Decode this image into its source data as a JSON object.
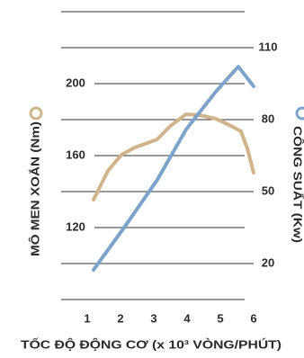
{
  "chart_data": {
    "type": "line",
    "x_label": "TỐC ĐỘ ĐỘNG CƠ (x 10³ VÒNG/PHÚT)",
    "y_label": "MÔ MEN XOẮN (Nm)",
    "y2_label": "CÔNG SUẤT (Kw)",
    "xlim": [
      0.2,
      6
    ],
    "xticks": [
      1,
      2,
      3,
      4,
      5,
      6
    ],
    "ylim": [
      80,
      240
    ],
    "yticks": [
      120,
      160,
      200
    ],
    "y2lim": [
      5,
      125
    ],
    "y2ticks": [
      20,
      50,
      80,
      110
    ],
    "series": [
      {
        "color": "#d2b48c",
        "x": [
          1.19,
          1.62,
          2.03,
          2.43,
          3.1,
          3.5,
          3.97,
          4.38,
          4.86,
          5.27,
          5.62,
          5.81,
          6.0
        ],
        "values": [
          135.5,
          151.5,
          160.5,
          164.5,
          169,
          176.5,
          183,
          182.5,
          180.5,
          177,
          173.5,
          164,
          150.5
        ]
      },
      {
        "color": "#7ba3cc",
        "axis": "y2",
        "x": [
          1.19,
          2.16,
          3.1,
          3.97,
          4.86,
          5.54,
          6.0
        ],
        "values": [
          17.4,
          36,
          54.8,
          75.9,
          91.6,
          102.1,
          93.9
        ]
      }
    ]
  }
}
